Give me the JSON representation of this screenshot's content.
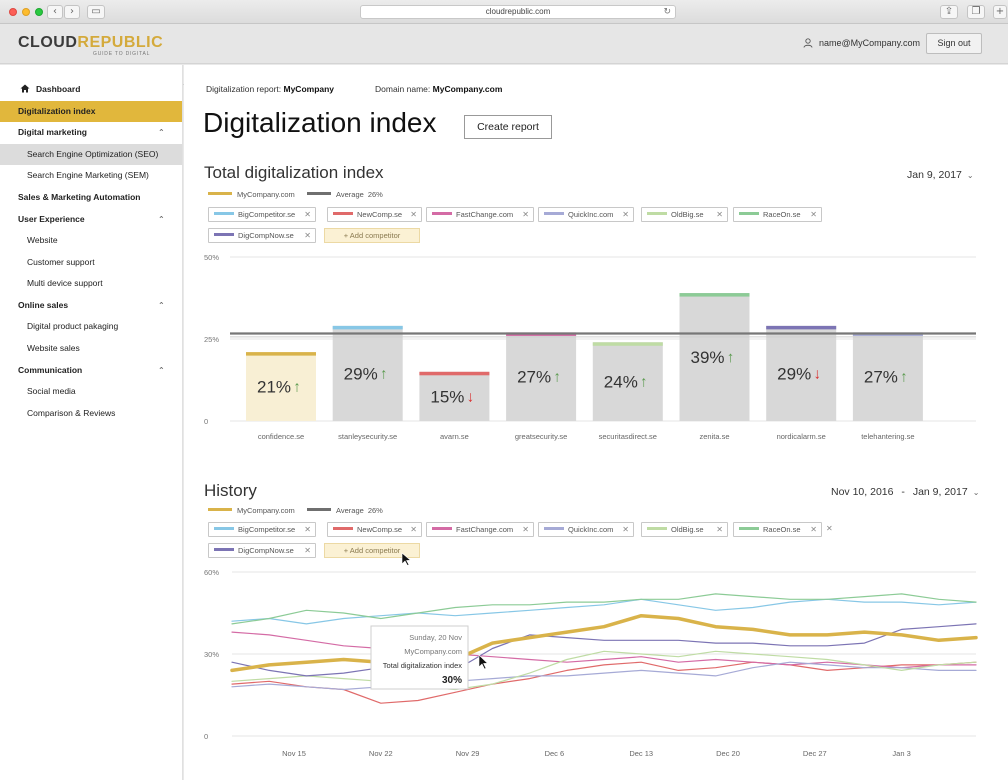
{
  "browser": {
    "url": "cloudrepublic.com"
  },
  "header": {
    "logo_main": "CLOUD",
    "logo_accent": "REPUBLIC",
    "logo_tagline": "GUIDE TO DIGITAL",
    "user_email": "name@MyCompany.com",
    "signout_label": "Sign out"
  },
  "sidebar": {
    "items": [
      {
        "label": "Dashboard",
        "kind": "top",
        "icon": "home-icon"
      },
      {
        "label": "Digitalization index",
        "kind": "active"
      },
      {
        "label": "Digital marketing",
        "kind": "section",
        "caret": "^"
      },
      {
        "label": "Search Engine Optimization (SEO)",
        "kind": "selected"
      },
      {
        "label": "Search Engine Marketing (SEM)",
        "kind": "sub"
      },
      {
        "label": "Sales & Marketing Automation",
        "kind": "section"
      },
      {
        "label": "User Experience",
        "kind": "section",
        "caret": "^"
      },
      {
        "label": "Website",
        "kind": "sub"
      },
      {
        "label": "Customer support",
        "kind": "sub"
      },
      {
        "label": "Multi device support",
        "kind": "sub"
      },
      {
        "label": "Online sales",
        "kind": "section",
        "caret": "^"
      },
      {
        "label": "Digital product pakaging",
        "kind": "sub"
      },
      {
        "label": "Website sales",
        "kind": "sub"
      },
      {
        "label": "Communication",
        "kind": "section",
        "caret": "^"
      },
      {
        "label": "Social media",
        "kind": "sub"
      },
      {
        "label": "Comparison & Reviews",
        "kind": "sub"
      }
    ]
  },
  "report": {
    "report_label": "Digitalization report:",
    "report_value": "MyCompany",
    "domain_label": "Domain name:",
    "domain_value": "MyCompany.com",
    "title": "Digitalization index",
    "create_label": "Create report"
  },
  "total": {
    "heading": "Total digitalization index",
    "date": "Jan 9, 2017"
  },
  "history": {
    "heading": "History",
    "date_from": "Nov 10, 2016",
    "date_sep": "-",
    "date_to": "Jan 9, 2017"
  },
  "legend": {
    "company": "MyCompany.com",
    "average": "Average",
    "average_value": "26%",
    "company_color": "#d9b34a",
    "average_color": "#6f6f6f"
  },
  "competitors": [
    {
      "name": "BigCompetitor.se",
      "color": "#87c7e6"
    },
    {
      "name": "NewComp.se",
      "color": "#e06a6a"
    },
    {
      "name": "FastChange.com",
      "color": "#d46ba5"
    },
    {
      "name": "QuickInc.com",
      "color": "#a6aad6"
    },
    {
      "name": "OldBig.se",
      "color": "#bfdca4"
    },
    {
      "name": "RaceOn.se",
      "color": "#8ccb96"
    },
    {
      "name": "DigCompNow.se",
      "color": "#7c74b4"
    }
  ],
  "add_competitor_label": "+ Add competitor",
  "remove_glyph": "✕",
  "chart_data": [
    {
      "type": "bar",
      "categories": [
        "confidence.se",
        "stanleysecurity.se",
        "avarn.se",
        "greatsecurity.se",
        "securitasdirect.se",
        "zenita.se",
        "nordicalarm.se",
        "telehantering.se"
      ],
      "values": [
        21,
        29,
        15,
        27,
        24,
        39,
        29,
        27
      ],
      "labels": [
        "21%",
        "29%",
        "15%",
        "27%",
        "24%",
        "39%",
        "29%",
        "27%"
      ],
      "trend": [
        "up",
        "up",
        "down",
        "up",
        "up",
        "up",
        "down",
        "up"
      ],
      "top_colors": [
        "#d9b34a",
        "#87c7e6",
        "#e06a6a",
        "#d46ba5",
        "#bfdca4",
        "#8ccb96",
        "#7c74b4",
        "#a6aad6"
      ],
      "highlight_index": 0,
      "average": 26,
      "ylim": [
        0,
        50
      ],
      "yticks": [
        0,
        25,
        50
      ],
      "ytick_labels": [
        "0",
        "25%",
        "50%"
      ],
      "up_color": "#5a9a4e",
      "down_color": "#d93030"
    },
    {
      "type": "line",
      "x": [
        "Nov 10",
        "Nov 13",
        "Nov 16",
        "Nov 19",
        "Nov 22",
        "Nov 25",
        "Nov 28",
        "Dec 1",
        "Dec 4",
        "Dec 7",
        "Dec 10",
        "Dec 13",
        "Dec 16",
        "Dec 19",
        "Dec 22",
        "Dec 25",
        "Dec 28",
        "Dec 31",
        "Jan 3",
        "Jan 6",
        "Jan 9"
      ],
      "xticks": [
        "Nov 15",
        "Nov 22",
        "Nov 29",
        "Dec 6",
        "Dec 13",
        "Dec 20",
        "Dec 27",
        "Jan 3"
      ],
      "ylim": [
        0,
        60
      ],
      "yticks": [
        0,
        30,
        60
      ],
      "ytick_labels": [
        "0",
        "30%",
        "60%"
      ],
      "series": [
        {
          "name": "MyCompany.com",
          "color": "#d9b34a",
          "width": 3.5,
          "values": [
            24,
            26,
            27,
            28,
            27,
            26,
            28,
            34,
            36,
            38,
            40,
            44,
            43,
            40,
            39,
            37,
            37,
            38,
            37,
            35,
            36
          ]
        },
        {
          "name": "BigCompetitor.se",
          "color": "#87c7e6",
          "width": 1.2,
          "values": [
            42,
            43,
            41,
            43,
            44,
            45,
            44,
            45,
            46,
            47,
            48,
            50,
            48,
            46,
            47,
            49,
            50,
            49,
            49,
            48,
            49
          ]
        },
        {
          "name": "NewComp.se",
          "color": "#e06a6a",
          "width": 1.2,
          "values": [
            19,
            20,
            18,
            17,
            12,
            13,
            16,
            19,
            21,
            24,
            26,
            27,
            24,
            25,
            27,
            26,
            24,
            25,
            26,
            26,
            27
          ]
        },
        {
          "name": "FastChange.com",
          "color": "#d46ba5",
          "width": 1.2,
          "values": [
            38,
            37,
            35,
            33,
            32,
            31,
            30,
            29,
            28,
            27,
            28,
            29,
            27,
            28,
            27,
            26,
            27,
            26,
            25,
            26,
            26
          ]
        },
        {
          "name": "QuickInc.com",
          "color": "#a6aad6",
          "width": 1.2,
          "values": [
            18,
            19,
            18,
            17,
            18,
            19,
            20,
            21,
            22,
            22,
            23,
            24,
            23,
            22,
            25,
            27,
            26,
            25,
            25,
            24,
            24
          ]
        },
        {
          "name": "OldBig.se",
          "color": "#bfdca4",
          "width": 1.2,
          "values": [
            20,
            21,
            22,
            21,
            20,
            18,
            17,
            19,
            23,
            28,
            31,
            30,
            29,
            31,
            30,
            29,
            28,
            26,
            24,
            26,
            27
          ]
        },
        {
          "name": "RaceOn.se",
          "color": "#8ccb96",
          "width": 1.2,
          "values": [
            41,
            43,
            46,
            45,
            43,
            45,
            47,
            48,
            48,
            49,
            49,
            50,
            50,
            52,
            51,
            50,
            50,
            51,
            52,
            50,
            49
          ]
        },
        {
          "name": "DigCompNow.se",
          "color": "#7c74b4",
          "width": 1.2,
          "values": [
            27,
            24,
            22,
            23,
            25,
            25,
            24,
            32,
            37,
            36,
            35,
            35,
            35,
            34,
            34,
            33,
            33,
            34,
            39,
            40,
            41
          ]
        }
      ],
      "tooltip": {
        "date": "Sunday, 20 Nov",
        "company": "MyCompany.com",
        "label": "Total digitalization index",
        "value": "30%"
      }
    }
  ]
}
